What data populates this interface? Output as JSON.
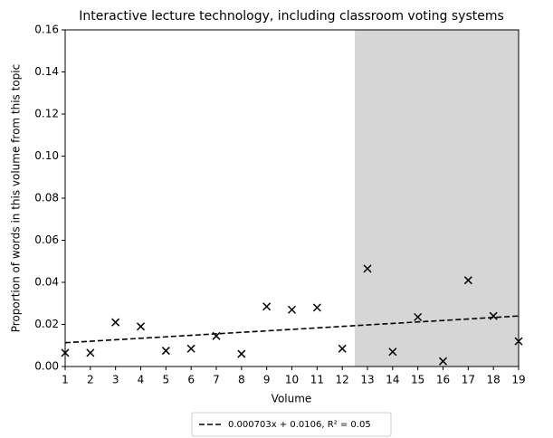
{
  "chart_data": {
    "type": "scatter",
    "title": "Interactive lecture technology, including classroom voting systems",
    "xlabel": "Volume",
    "ylabel": "Proportion of words in this volume from this topic",
    "x": [
      1,
      2,
      3,
      4,
      5,
      6,
      7,
      8,
      9,
      10,
      11,
      12,
      13,
      14,
      15,
      16,
      17,
      18,
      19
    ],
    "values": [
      0.0065,
      0.0065,
      0.021,
      0.019,
      0.0075,
      0.0085,
      0.0145,
      0.006,
      0.0285,
      0.027,
      0.028,
      0.0085,
      0.0465,
      0.007,
      0.0235,
      0.0025,
      0.041,
      0.024,
      0.012
    ],
    "color": "#000000",
    "trend_line": {
      "name": "0.000703x + 0.0106, R² = 0.05",
      "x": [
        1,
        19
      ],
      "values": [
        0.0113,
        0.024
      ],
      "color": "#000000"
    },
    "shaded_region": {
      "xlim": [
        12.5,
        19
      ],
      "color": "#d6d6d6"
    },
    "xlim": [
      1,
      19
    ],
    "xticks": [
      1,
      2,
      3,
      4,
      5,
      6,
      7,
      8,
      9,
      10,
      11,
      12,
      13,
      14,
      15,
      16,
      17,
      18,
      19
    ],
    "ylim": [
      0,
      0.16
    ],
    "yticks": [
      {
        "value": 0,
        "label": "0.00"
      },
      0.02,
      0.04,
      0.06,
      0.08,
      {
        "value": 0.1,
        "label": "0.10"
      },
      0.12,
      0.14,
      0.16
    ],
    "legend": "bottom"
  }
}
